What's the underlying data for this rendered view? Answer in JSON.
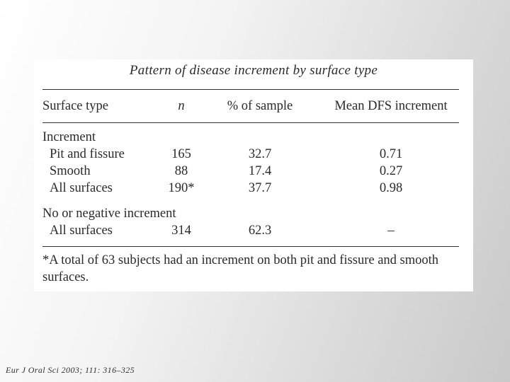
{
  "table": {
    "title": "Pattern of disease increment by surface type",
    "headers": [
      "Surface type",
      "n",
      "% of sample",
      "Mean DFS increment"
    ],
    "groups": [
      {
        "label": "Increment",
        "rows": [
          {
            "type": "Pit and fissure",
            "n": "165",
            "pct": "32.7",
            "dfs": "0.71"
          },
          {
            "type": "Smooth",
            "n": "88",
            "pct": "17.4",
            "dfs": "0.27"
          },
          {
            "type": "All surfaces",
            "n": "190*",
            "pct": "37.7",
            "dfs": "0.98"
          }
        ]
      },
      {
        "label": "No or negative increment",
        "rows": [
          {
            "type": "All surfaces",
            "n": "314",
            "pct": "62.3",
            "dfs": "–"
          }
        ]
      }
    ],
    "footnote": "*A total of 63 subjects had an increment on both pit and fissure and smooth surfaces."
  },
  "citation": "Eur J Oral Sci 2003; 111: 316–325"
}
